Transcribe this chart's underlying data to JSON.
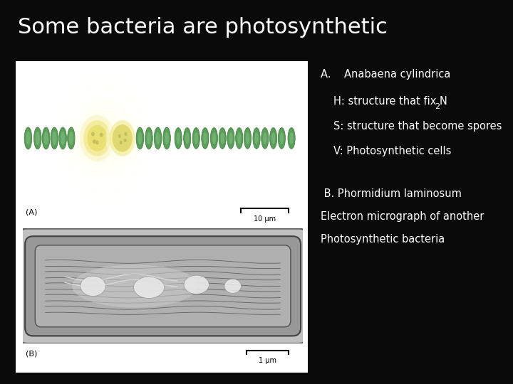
{
  "title": "Some bacteria are photosynthetic",
  "title_fontsize": 22,
  "title_color": "#ffffff",
  "background_color": "#0a0a0a",
  "text_color": "#ffffff",
  "panel_A_label": "(A)",
  "panel_B_label": "(B)",
  "scale_A_text": "10 μm",
  "scale_B_text": "1 μm",
  "annotation_A_title": "A.    Anabaena cylindrica",
  "annotation_A_line1": "H: structure that fix N",
  "annotation_A_N2": "2",
  "annotation_A_line2": "S: structure that become spores",
  "annotation_A_line3": "V: Photosynthetic cells",
  "annotation_B_line1": " B. Phormidium laminosum",
  "annotation_B_line2": "Electron micrograph of another",
  "annotation_B_line3": "Photosynthetic bacteria",
  "text_fontsize": 10.5,
  "teal_bg": "#3aacb0",
  "cell_green": "#5a9e5a",
  "cell_border": "#3a7a3a",
  "het_glow": "#ffffcc",
  "het_body": "#e8e0a0",
  "spore_body": "#d8d890"
}
